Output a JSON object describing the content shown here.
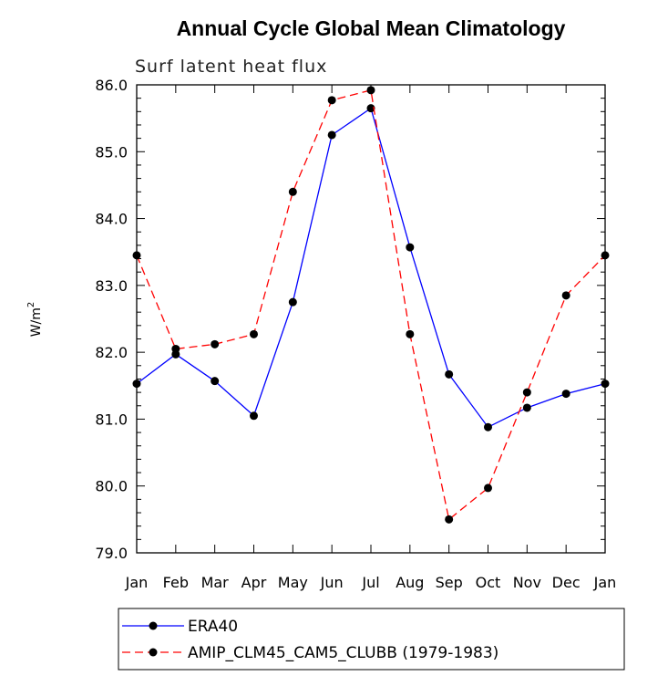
{
  "chart_data": {
    "type": "line",
    "title": "Annual Cycle Global Mean Climatology",
    "subtitle": "Surf latent heat flux",
    "ylabel": "W/m",
    "ylabel_sup": "2",
    "ylim": [
      79.0,
      86.0
    ],
    "yticks": [
      "79.0",
      "80.0",
      "81.0",
      "82.0",
      "83.0",
      "84.0",
      "85.0",
      "86.0"
    ],
    "categories": [
      "Jan",
      "Feb",
      "Mar",
      "Apr",
      "May",
      "Jun",
      "Jul",
      "Aug",
      "Sep",
      "Oct",
      "Nov",
      "Dec",
      "Jan"
    ],
    "grid": false,
    "legend_position": "bottom",
    "series": [
      {
        "name": "ERA40",
        "color": "#0000ff",
        "style": "solid",
        "values": [
          81.53,
          81.97,
          81.57,
          81.05,
          82.75,
          85.25,
          85.65,
          83.57,
          81.67,
          80.88,
          81.17,
          81.38,
          81.53
        ]
      },
      {
        "name": "AMIP_CLM45_CAM5_CLUBB (1979-1983)",
        "color": "#ff0000",
        "style": "dashed",
        "values": [
          83.45,
          82.05,
          82.12,
          82.27,
          84.4,
          85.77,
          85.92,
          82.27,
          79.5,
          79.97,
          81.4,
          82.85,
          83.45
        ]
      }
    ]
  }
}
